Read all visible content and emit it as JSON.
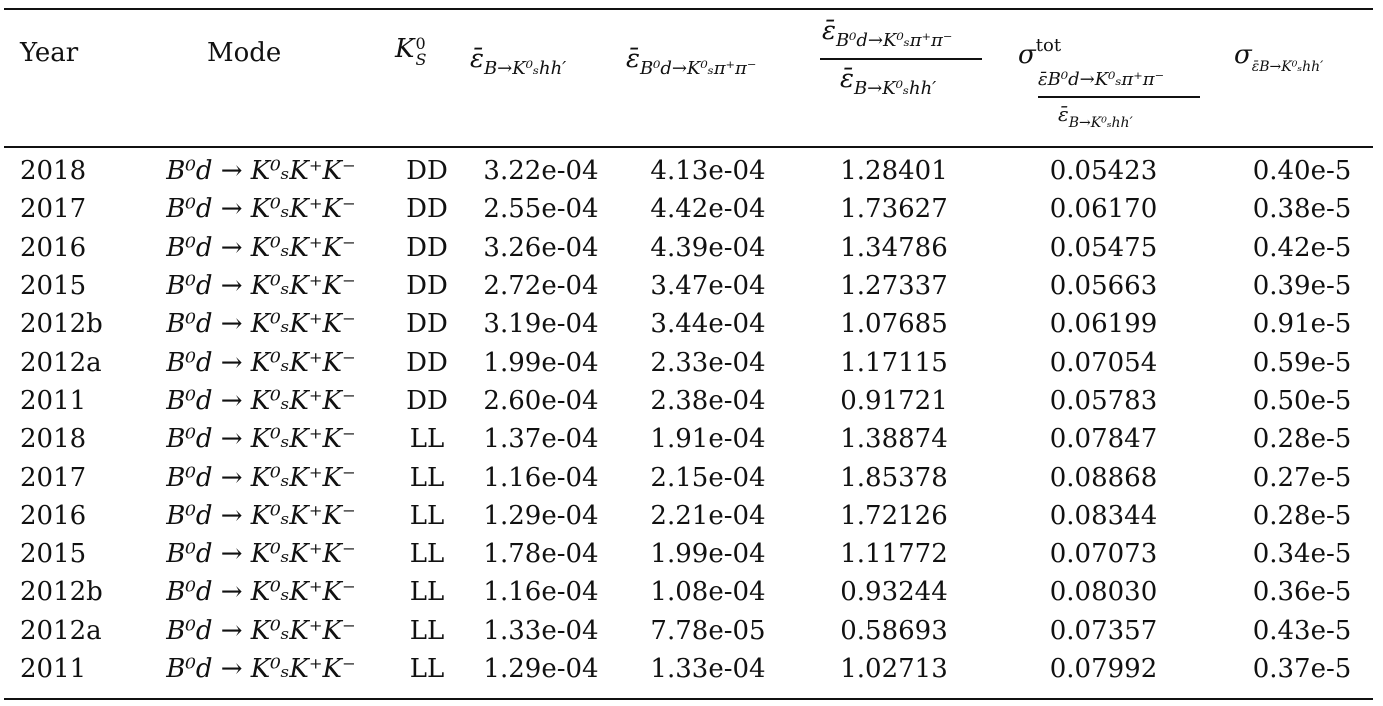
{
  "table": {
    "headers": {
      "year": "Year",
      "mode": "Mode",
      "ks": "K",
      "ks_sub": "S",
      "ks_sup": "0",
      "eff_kshh_sym": "ε̄",
      "eff_kshh_sub": "B→K⁰ₛhh′",
      "eff_kspipi_sym": "ε̄",
      "eff_kspipi_sub": "B⁰d→K⁰ₛπ⁺π⁻",
      "ratio_num": "ε̄",
      "ratio_num_sub": "B⁰d→K⁰ₛπ⁺π⁻",
      "ratio_den": "ε̄",
      "ratio_den_sub": "B→K⁰ₛhh′",
      "sigma_tot_sym": "σ",
      "sigma_tot_sup": "tot",
      "sigma_tot_num_sub": "ε̄B⁰d→K⁰ₛπ⁺π⁻",
      "sigma_tot_den": "ε̄",
      "sigma_tot_den_sub": "B→K⁰ₛhh′",
      "sigma_eff_sym": "σ",
      "sigma_eff_sub": "ε̄B→K⁰ₛhh′"
    },
    "rows": [
      {
        "year": "2018",
        "mode": "B⁰d → K⁰ₛK⁺K⁻",
        "ks": "DD",
        "eff_kshh": "3.22e-04",
        "eff_kspipi": "4.13e-04",
        "ratio": "1.28401",
        "sigma_tot": "0.05423",
        "sigma_eff": "0.40e-5"
      },
      {
        "year": "2017",
        "mode": "B⁰d → K⁰ₛK⁺K⁻",
        "ks": "DD",
        "eff_kshh": "2.55e-04",
        "eff_kspipi": "4.42e-04",
        "ratio": "1.73627",
        "sigma_tot": "0.06170",
        "sigma_eff": "0.38e-5"
      },
      {
        "year": "2016",
        "mode": "B⁰d → K⁰ₛK⁺K⁻",
        "ks": "DD",
        "eff_kshh": "3.26e-04",
        "eff_kspipi": "4.39e-04",
        "ratio": "1.34786",
        "sigma_tot": "0.05475",
        "sigma_eff": "0.42e-5"
      },
      {
        "year": "2015",
        "mode": "B⁰d → K⁰ₛK⁺K⁻",
        "ks": "DD",
        "eff_kshh": "2.72e-04",
        "eff_kspipi": "3.47e-04",
        "ratio": "1.27337",
        "sigma_tot": "0.05663",
        "sigma_eff": "0.39e-5"
      },
      {
        "year": "2012b",
        "mode": "B⁰d → K⁰ₛK⁺K⁻",
        "ks": "DD",
        "eff_kshh": "3.19e-04",
        "eff_kspipi": "3.44e-04",
        "ratio": "1.07685",
        "sigma_tot": "0.06199",
        "sigma_eff": "0.91e-5"
      },
      {
        "year": "2012a",
        "mode": "B⁰d → K⁰ₛK⁺K⁻",
        "ks": "DD",
        "eff_kshh": "1.99e-04",
        "eff_kspipi": "2.33e-04",
        "ratio": "1.17115",
        "sigma_tot": "0.07054",
        "sigma_eff": "0.59e-5"
      },
      {
        "year": "2011",
        "mode": "B⁰d → K⁰ₛK⁺K⁻",
        "ks": "DD",
        "eff_kshh": "2.60e-04",
        "eff_kspipi": "2.38e-04",
        "ratio": "0.91721",
        "sigma_tot": "0.05783",
        "sigma_eff": "0.50e-5"
      },
      {
        "year": "2018",
        "mode": "B⁰d → K⁰ₛK⁺K⁻",
        "ks": "LL",
        "eff_kshh": "1.37e-04",
        "eff_kspipi": "1.91e-04",
        "ratio": "1.38874",
        "sigma_tot": "0.07847",
        "sigma_eff": "0.28e-5"
      },
      {
        "year": "2017",
        "mode": "B⁰d → K⁰ₛK⁺K⁻",
        "ks": "LL",
        "eff_kshh": "1.16e-04",
        "eff_kspipi": "2.15e-04",
        "ratio": "1.85378",
        "sigma_tot": "0.08868",
        "sigma_eff": "0.27e-5"
      },
      {
        "year": "2016",
        "mode": "B⁰d → K⁰ₛK⁺K⁻",
        "ks": "LL",
        "eff_kshh": "1.29e-04",
        "eff_kspipi": "2.21e-04",
        "ratio": "1.72126",
        "sigma_tot": "0.08344",
        "sigma_eff": "0.28e-5"
      },
      {
        "year": "2015",
        "mode": "B⁰d → K⁰ₛK⁺K⁻",
        "ks": "LL",
        "eff_kshh": "1.78e-04",
        "eff_kspipi": "1.99e-04",
        "ratio": "1.11772",
        "sigma_tot": "0.07073",
        "sigma_eff": "0.34e-5"
      },
      {
        "year": "2012b",
        "mode": "B⁰d → K⁰ₛK⁺K⁻",
        "ks": "LL",
        "eff_kshh": "1.16e-04",
        "eff_kspipi": "1.08e-04",
        "ratio": "0.93244",
        "sigma_tot": "0.08030",
        "sigma_eff": "0.36e-5"
      },
      {
        "year": "2012a",
        "mode": "B⁰d → K⁰ₛK⁺K⁻",
        "ks": "LL",
        "eff_kshh": "1.33e-04",
        "eff_kspipi": "7.78e-05",
        "ratio": "0.58693",
        "sigma_tot": "0.07357",
        "sigma_eff": "0.43e-5"
      },
      {
        "year": "2011",
        "mode": "B⁰d → K⁰ₛK⁺K⁻",
        "ks": "LL",
        "eff_kshh": "1.29e-04",
        "eff_kspipi": "1.33e-04",
        "ratio": "1.02713",
        "sigma_tot": "0.07992",
        "sigma_eff": "0.37e-5"
      }
    ]
  }
}
